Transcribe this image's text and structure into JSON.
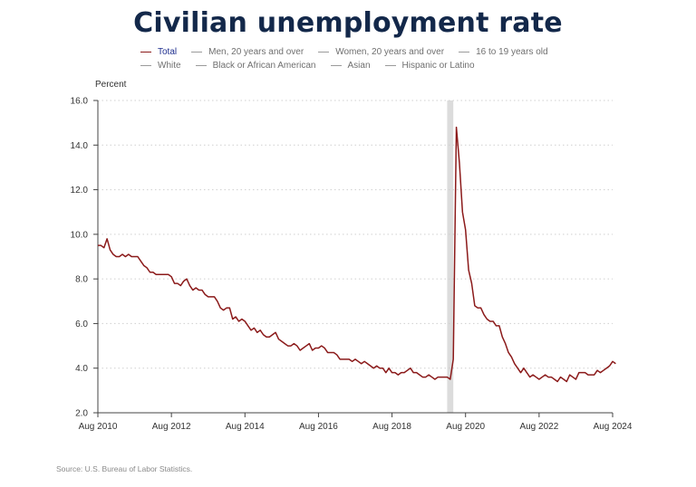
{
  "title": "Civilian unemployment rate",
  "legend": {
    "row1": [
      {
        "label": "Total",
        "active": true
      },
      {
        "label": "Men, 20 years and over",
        "active": false
      },
      {
        "label": "Women, 20 years and over",
        "active": false
      },
      {
        "label": "16 to 19 years old",
        "active": false
      }
    ],
    "row2": [
      {
        "label": "White",
        "active": false
      },
      {
        "label": "Black or African American",
        "active": false
      },
      {
        "label": "Asian",
        "active": false
      },
      {
        "label": "Hispanic or Latino",
        "active": false
      }
    ]
  },
  "source": "Source: U.S. Bureau of Labor Statistics.",
  "colors": {
    "series": "#8b1a1a",
    "recession": "#dcdcdc",
    "grid": "#cfcfcf",
    "axis": "#444444",
    "title": "#13284a"
  },
  "chart_data": {
    "type": "line",
    "title": "Civilian unemployment rate",
    "ylabel": "Percent",
    "xlabel": "",
    "ylim": [
      2.0,
      16.0
    ],
    "yticks": [
      "2.0",
      "4.0",
      "6.0",
      "8.0",
      "10.0",
      "12.0",
      "14.0",
      "16.0"
    ],
    "xticks": [
      {
        "label": "Aug 2010",
        "x": 2010.583
      },
      {
        "label": "Aug 2012",
        "x": 2012.583
      },
      {
        "label": "Aug 2014",
        "x": 2014.583
      },
      {
        "label": "Aug 2016",
        "x": 2016.583
      },
      {
        "label": "Aug 2018",
        "x": 2018.583
      },
      {
        "label": "Aug 2020",
        "x": 2020.583
      },
      {
        "label": "Aug 2022",
        "x": 2022.583
      },
      {
        "label": "Aug 2024",
        "x": 2024.583
      }
    ],
    "xlim": [
      2010.583,
      2024.583
    ],
    "grid": true,
    "recession_shading": [
      {
        "start": 2020.083,
        "end": 2020.25
      }
    ],
    "series": [
      {
        "name": "Total",
        "x_start": "Aug 2010",
        "frequency": "monthly",
        "values": [
          9.5,
          9.5,
          9.4,
          9.8,
          9.3,
          9.1,
          9.0,
          9.0,
          9.1,
          9.0,
          9.1,
          9.0,
          9.0,
          9.0,
          8.8,
          8.6,
          8.5,
          8.3,
          8.3,
          8.2,
          8.2,
          8.2,
          8.2,
          8.2,
          8.1,
          7.8,
          7.8,
          7.7,
          7.9,
          8.0,
          7.7,
          7.5,
          7.6,
          7.5,
          7.5,
          7.3,
          7.2,
          7.2,
          7.2,
          7.0,
          6.7,
          6.6,
          6.7,
          6.7,
          6.2,
          6.3,
          6.1,
          6.2,
          6.1,
          5.9,
          5.7,
          5.8,
          5.6,
          5.7,
          5.5,
          5.4,
          5.4,
          5.5,
          5.6,
          5.3,
          5.2,
          5.1,
          5.0,
          5.0,
          5.1,
          5.0,
          4.8,
          4.9,
          5.0,
          5.1,
          4.8,
          4.9,
          4.9,
          5.0,
          4.9,
          4.7,
          4.7,
          4.7,
          4.6,
          4.4,
          4.4,
          4.4,
          4.4,
          4.3,
          4.4,
          4.3,
          4.2,
          4.3,
          4.2,
          4.1,
          4.0,
          4.1,
          4.0,
          4.0,
          3.8,
          4.0,
          3.8,
          3.8,
          3.7,
          3.8,
          3.8,
          3.9,
          4.0,
          3.8,
          3.8,
          3.7,
          3.6,
          3.6,
          3.7,
          3.6,
          3.5,
          3.6,
          3.6,
          3.6,
          3.6,
          3.5,
          4.4,
          14.8,
          13.2,
          11.0,
          10.2,
          8.4,
          7.8,
          6.8,
          6.7,
          6.7,
          6.4,
          6.2,
          6.1,
          6.1,
          5.9,
          5.9,
          5.4,
          5.1,
          4.7,
          4.5,
          4.2,
          4.0,
          3.8,
          4.0,
          3.8,
          3.6,
          3.7,
          3.6,
          3.5,
          3.6,
          3.7,
          3.6,
          3.6,
          3.5,
          3.4,
          3.6,
          3.5,
          3.4,
          3.7,
          3.6,
          3.5,
          3.8,
          3.8,
          3.8,
          3.7,
          3.7,
          3.7,
          3.9,
          3.8,
          3.9,
          4.0,
          4.1,
          4.3,
          4.2
        ]
      }
    ]
  }
}
